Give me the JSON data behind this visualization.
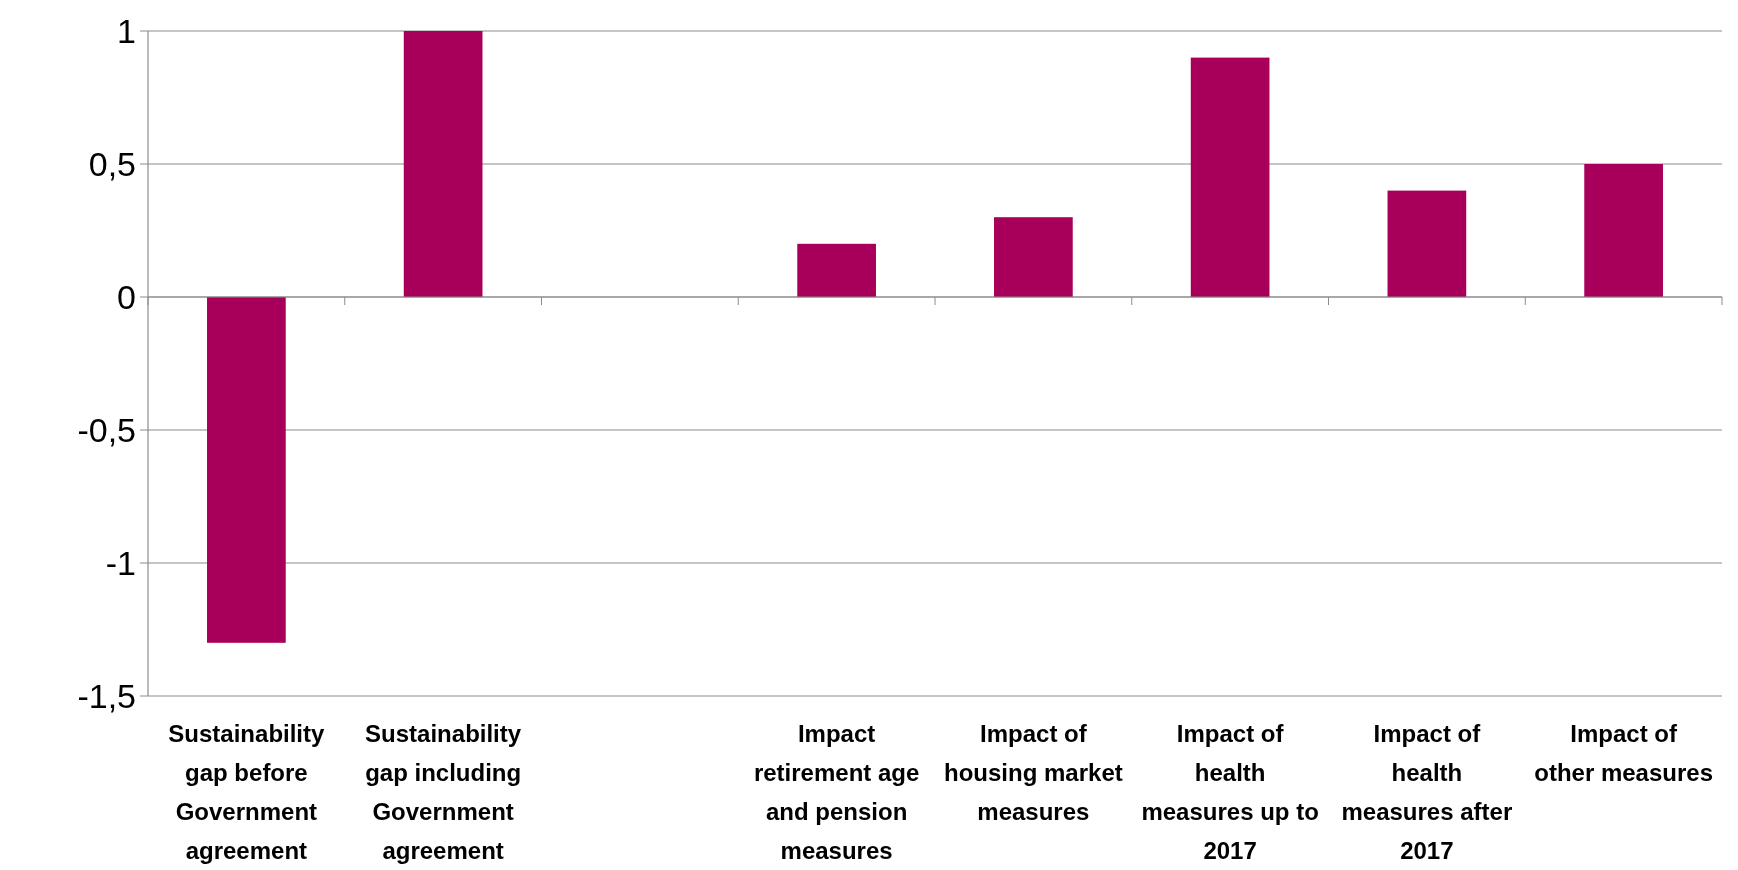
{
  "chart_data": {
    "type": "bar",
    "categories": [
      "Sustainability gap before Government agreement",
      "Sustainability gap including Government agreement",
      null,
      "Impact retirement age and pension measures",
      "Impact of housing market measures",
      "Impact of health measures up to 2017",
      "Impact of health measures after 2017",
      "Impact of other measures"
    ],
    "values": [
      -1.3,
      1.0,
      null,
      0.2,
      0.3,
      0.9,
      0.4,
      0.5
    ],
    "color": "#a8005a",
    "ylim": [
      -1.5,
      1
    ],
    "yticks": [
      {
        "value": -1.5,
        "label": "-1,5"
      },
      {
        "value": -1,
        "label": "-1"
      },
      {
        "value": -0.5,
        "label": "-0,5"
      },
      {
        "value": 0,
        "label": "0"
      },
      {
        "value": 0.5,
        "label": "0,5"
      },
      {
        "value": 1,
        "label": "1"
      }
    ],
    "grid": "y"
  }
}
